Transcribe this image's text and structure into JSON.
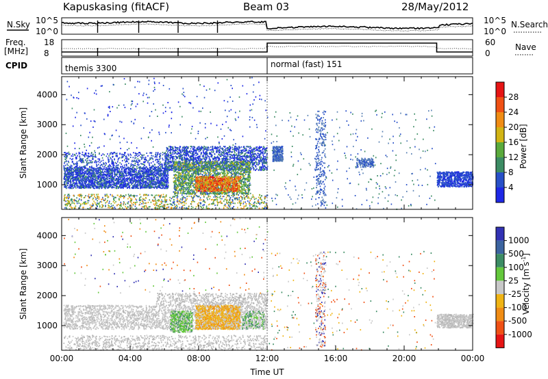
{
  "header": {
    "station": "Kapuskasing (fitACF)",
    "beam": "Beam 03",
    "date": "28/May/2012"
  },
  "strip": {
    "nsky_label": "N.Sky",
    "nsearch_label": "N.Search",
    "freq_label": "Freq.",
    "freq_unit": "[MHz]",
    "nave_label": "Nave",
    "cpid_label": "CPID",
    "noise_left_ticks": [
      "10^5",
      "10^0"
    ],
    "noise_right_ticks": [
      "10^5",
      "10^0"
    ],
    "freq_left_ticks": [
      "18",
      "8"
    ],
    "freq_right_ticks": [
      "60",
      "0"
    ],
    "cpid_segments": [
      {
        "label": "themis 3300",
        "start_hour": 0
      },
      {
        "label": "normal (fast) 151",
        "start_hour": 12
      }
    ]
  },
  "chart_data": [
    {
      "type": "heatmap",
      "name": "power-panel",
      "ylabel": "Slant Range [km]",
      "xlabel": "",
      "x_range_hours": [
        0,
        24
      ],
      "ylim": [
        180,
        4600
      ],
      "y_ticks": [
        1000,
        2000,
        3000,
        4000
      ],
      "colorbar": {
        "label": "Power [dB]",
        "ticks": [
          "4",
          "8",
          "12",
          "16",
          "20",
          "24",
          "28"
        ],
        "colors": [
          "#1e28e6",
          "#2850c8",
          "#3c8c64",
          "#5aaa3c",
          "#d2b414",
          "#f08c14",
          "#f05014",
          "#e61414"
        ]
      }
    },
    {
      "type": "heatmap",
      "name": "velocity-panel",
      "ylabel": "Slant Range [km]",
      "xlabel": "Time UT",
      "x_range_hours": [
        0,
        24
      ],
      "ylim": [
        180,
        4600
      ],
      "y_ticks": [
        1000,
        2000,
        3000,
        4000
      ],
      "x_ticks": [
        "00:00",
        "04:00",
        "08:00",
        "12:00",
        "16:00",
        "20:00",
        "00:00"
      ],
      "colorbar": {
        "label": "Velocity [m s",
        "label_sup": "-1",
        "label_end": "]",
        "ticks": [
          "1000",
          "500",
          "100",
          "25",
          "-25",
          "-100",
          "-500",
          "-1000"
        ],
        "colors": [
          "#3232b4",
          "#3c64a0",
          "#3c8c64",
          "#64c83c",
          "#c8c8c8",
          "#f0b414",
          "#f08c14",
          "#f05014",
          "#e61414"
        ]
      }
    }
  ]
}
